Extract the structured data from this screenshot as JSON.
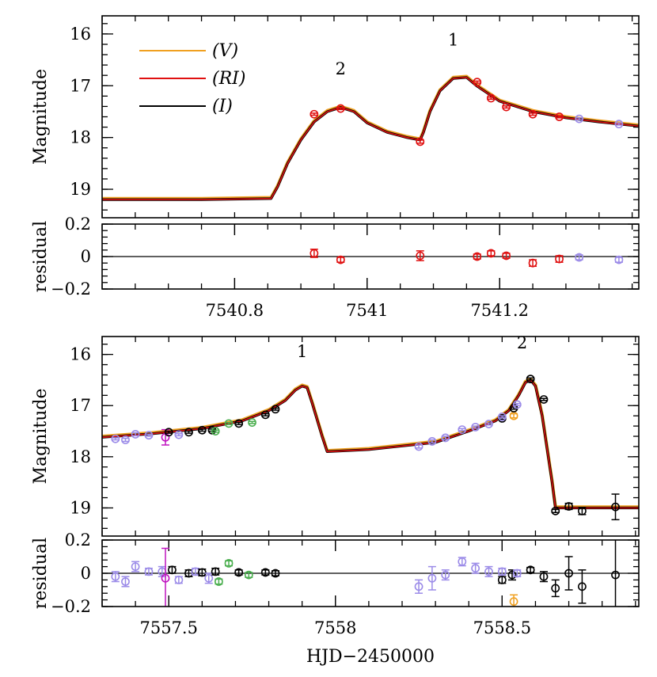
{
  "chart_data": [
    {
      "type": "line",
      "name": "top-light-curve",
      "ylabel": "Magnitude",
      "xlim": [
        7540.6,
        7541.41
      ],
      "ylim": [
        15.65,
        19.55
      ],
      "y_inverted": true,
      "yticks": [
        "16",
        "17",
        "18",
        "19"
      ],
      "yticks_values": [
        16,
        17,
        18,
        19
      ],
      "legend": [
        {
          "label": "(V)",
          "color": "#f0a020"
        },
        {
          "label": "(RI)",
          "color": "#e01010"
        },
        {
          "label": "(I)",
          "color": "#000000"
        }
      ],
      "annotations": [
        {
          "text": "2",
          "x": 7540.96,
          "y": 16.78
        },
        {
          "text": "1",
          "x": 7541.13,
          "y": 16.22
        }
      ],
      "model": {
        "x": [
          7540.6,
          7540.75,
          7540.855,
          7540.865,
          7540.88,
          7540.9,
          7540.92,
          7540.94,
          7540.96,
          7540.98,
          7541.0,
          7541.03,
          7541.06,
          7541.08,
          7541.085,
          7541.095,
          7541.11,
          7541.13,
          7541.15,
          7541.165,
          7541.2,
          7541.25,
          7541.3,
          7541.35,
          7541.41
        ],
        "y": [
          19.2,
          19.2,
          19.18,
          18.95,
          18.5,
          18.05,
          17.7,
          17.5,
          17.42,
          17.5,
          17.72,
          17.9,
          18.0,
          18.05,
          17.9,
          17.5,
          17.1,
          16.86,
          16.84,
          17.0,
          17.3,
          17.5,
          17.62,
          17.7,
          17.78
        ]
      },
      "points": [
        {
          "x": 7540.92,
          "y": 17.55,
          "err": 0.02,
          "color": "#e01010"
        },
        {
          "x": 7540.96,
          "y": 17.44,
          "err": 0.02,
          "color": "#e01010"
        },
        {
          "x": 7541.08,
          "y": 18.08,
          "err": 0.03,
          "color": "#e01010"
        },
        {
          "x": 7541.166,
          "y": 16.93,
          "err": 0.02,
          "color": "#e01010"
        },
        {
          "x": 7541.187,
          "y": 17.24,
          "err": 0.02,
          "color": "#e01010"
        },
        {
          "x": 7541.21,
          "y": 17.41,
          "err": 0.02,
          "color": "#e01010"
        },
        {
          "x": 7541.25,
          "y": 17.55,
          "err": 0.02,
          "color": "#e01010"
        },
        {
          "x": 7541.29,
          "y": 17.6,
          "err": 0.02,
          "color": "#e01010"
        },
        {
          "x": 7541.32,
          "y": 17.64,
          "err": 0.02,
          "color": "#9b8be8"
        },
        {
          "x": 7541.38,
          "y": 17.74,
          "err": 0.02,
          "color": "#9b8be8"
        }
      ]
    },
    {
      "type": "scatter",
      "name": "top-residual",
      "ylabel": "residual",
      "xlabel": "",
      "xlim": [
        7540.6,
        7541.41
      ],
      "ylim": [
        -0.2,
        0.2
      ],
      "yticks": [
        "0.2",
        "0",
        "−0.2"
      ],
      "yticks_values": [
        0.2,
        0,
        -0.2
      ],
      "xticks": [
        "7540.8",
        "7541",
        "7541.2"
      ],
      "xticks_values": [
        7540.8,
        7541.0,
        7541.2
      ],
      "points": [
        {
          "x": 7540.92,
          "y": 0.02,
          "err": 0.025,
          "color": "#e01010"
        },
        {
          "x": 7540.96,
          "y": -0.02,
          "err": 0.015,
          "color": "#e01010"
        },
        {
          "x": 7541.08,
          "y": 0.005,
          "err": 0.03,
          "color": "#e01010"
        },
        {
          "x": 7541.166,
          "y": 0.0,
          "err": 0.015,
          "color": "#e01010"
        },
        {
          "x": 7541.187,
          "y": 0.02,
          "err": 0.015,
          "color": "#e01010"
        },
        {
          "x": 7541.21,
          "y": 0.005,
          "err": 0.015,
          "color": "#e01010"
        },
        {
          "x": 7541.25,
          "y": -0.04,
          "err": 0.02,
          "color": "#e01010"
        },
        {
          "x": 7541.29,
          "y": -0.015,
          "err": 0.02,
          "color": "#e01010"
        },
        {
          "x": 7541.32,
          "y": -0.005,
          "err": 0.015,
          "color": "#9b8be8"
        },
        {
          "x": 7541.38,
          "y": -0.02,
          "err": 0.015,
          "color": "#9b8be8"
        }
      ]
    },
    {
      "type": "line",
      "name": "bottom-light-curve",
      "ylabel": "Magnitude",
      "xlim": [
        7557.3,
        7558.91
      ],
      "ylim": [
        15.65,
        19.55
      ],
      "y_inverted": true,
      "yticks": [
        "16",
        "17",
        "18",
        "19"
      ],
      "yticks_values": [
        16,
        17,
        18,
        19
      ],
      "annotations": [
        {
          "text": "1",
          "x": 7557.9,
          "y": 16.05
        },
        {
          "text": "2",
          "x": 7558.56,
          "y": 15.88
        }
      ],
      "model": {
        "x": [
          7557.3,
          7557.45,
          7557.6,
          7557.72,
          7557.8,
          7557.85,
          7557.88,
          7557.9,
          7557.915,
          7557.93,
          7557.96,
          7557.975,
          7558.1,
          7558.3,
          7558.4,
          7558.48,
          7558.52,
          7558.55,
          7558.57,
          7558.585,
          7558.6,
          7558.62,
          7558.65,
          7558.66,
          7558.91
        ],
        "y": [
          17.62,
          17.55,
          17.45,
          17.3,
          17.1,
          16.9,
          16.7,
          16.62,
          16.65,
          16.95,
          17.6,
          17.9,
          17.86,
          17.72,
          17.5,
          17.3,
          17.1,
          16.8,
          16.55,
          16.5,
          16.62,
          17.2,
          18.5,
          19.0,
          19.0
        ]
      },
      "points": [
        {
          "x": 7557.34,
          "y": 17.65,
          "err": 0.02,
          "color": "#9b8be8"
        },
        {
          "x": 7557.37,
          "y": 17.67,
          "err": 0.03,
          "color": "#9b8be8"
        },
        {
          "x": 7557.4,
          "y": 17.56,
          "err": 0.03,
          "color": "#9b8be8"
        },
        {
          "x": 7557.44,
          "y": 17.58,
          "err": 0.02,
          "color": "#9b8be8"
        },
        {
          "x": 7557.49,
          "y": 17.62,
          "err": 0.15,
          "color": "#c014c0"
        },
        {
          "x": 7557.5,
          "y": 17.52,
          "err": 0.02,
          "color": "#000000"
        },
        {
          "x": 7557.53,
          "y": 17.57,
          "err": 0.02,
          "color": "#9b8be8"
        },
        {
          "x": 7557.56,
          "y": 17.52,
          "err": 0.02,
          "color": "#000000"
        },
        {
          "x": 7557.6,
          "y": 17.48,
          "err": 0.02,
          "color": "#000000"
        },
        {
          "x": 7557.63,
          "y": 17.48,
          "err": 0.02,
          "color": "#000000"
        },
        {
          "x": 7557.64,
          "y": 17.5,
          "err": 0.02,
          "color": "#4caf50"
        },
        {
          "x": 7557.68,
          "y": 17.35,
          "err": 0.02,
          "color": "#4caf50"
        },
        {
          "x": 7557.71,
          "y": 17.35,
          "err": 0.02,
          "color": "#000000"
        },
        {
          "x": 7557.75,
          "y": 17.33,
          "err": 0.02,
          "color": "#4caf50"
        },
        {
          "x": 7557.79,
          "y": 17.18,
          "err": 0.02,
          "color": "#000000"
        },
        {
          "x": 7557.82,
          "y": 17.07,
          "err": 0.02,
          "color": "#000000"
        },
        {
          "x": 7558.25,
          "y": 17.8,
          "err": 0.03,
          "color": "#9b8be8"
        },
        {
          "x": 7558.29,
          "y": 17.7,
          "err": 0.03,
          "color": "#9b8be8"
        },
        {
          "x": 7558.33,
          "y": 17.63,
          "err": 0.03,
          "color": "#9b8be8"
        },
        {
          "x": 7558.38,
          "y": 17.47,
          "err": 0.02,
          "color": "#9b8be8"
        },
        {
          "x": 7558.42,
          "y": 17.42,
          "err": 0.02,
          "color": "#9b8be8"
        },
        {
          "x": 7558.46,
          "y": 17.36,
          "err": 0.02,
          "color": "#9b8be8"
        },
        {
          "x": 7558.5,
          "y": 17.25,
          "err": 0.02,
          "color": "#000000"
        },
        {
          "x": 7558.5,
          "y": 17.22,
          "err": 0.02,
          "color": "#9b8be8"
        },
        {
          "x": 7558.535,
          "y": 17.2,
          "err": 0.04,
          "color": "#f0a020"
        },
        {
          "x": 7558.535,
          "y": 17.05,
          "err": 0.02,
          "color": "#000000"
        },
        {
          "x": 7558.545,
          "y": 16.98,
          "err": 0.02,
          "color": "#9b8be8"
        },
        {
          "x": 7558.585,
          "y": 16.48,
          "err": 0.02,
          "color": "#000000"
        },
        {
          "x": 7558.625,
          "y": 16.88,
          "err": 0.02,
          "color": "#000000"
        },
        {
          "x": 7558.66,
          "y": 19.06,
          "err": 0.03,
          "color": "#000000"
        },
        {
          "x": 7558.7,
          "y": 18.97,
          "err": 0.06,
          "color": "#000000"
        },
        {
          "x": 7558.74,
          "y": 19.06,
          "err": 0.07,
          "color": "#000000"
        },
        {
          "x": 7558.84,
          "y": 18.98,
          "err": 0.25,
          "color": "#000000"
        }
      ]
    },
    {
      "type": "scatter",
      "name": "bottom-residual",
      "ylabel": "residual",
      "xlabel": "HJD−2450000",
      "xlim": [
        7557.3,
        7558.91
      ],
      "ylim": [
        -0.2,
        0.2
      ],
      "yticks": [
        "0.2",
        "0",
        "−0.2"
      ],
      "yticks_values": [
        0.2,
        0,
        -0.2
      ],
      "xticks": [
        "7557.5",
        "7558",
        "7558.5"
      ],
      "xticks_values": [
        7557.5,
        7558.0,
        7558.5
      ],
      "points": [
        {
          "x": 7557.34,
          "y": -0.02,
          "err": 0.03,
          "color": "#9b8be8"
        },
        {
          "x": 7557.37,
          "y": -0.05,
          "err": 0.03,
          "color": "#9b8be8"
        },
        {
          "x": 7557.4,
          "y": 0.04,
          "err": 0.03,
          "color": "#9b8be8"
        },
        {
          "x": 7557.44,
          "y": 0.01,
          "err": 0.02,
          "color": "#9b8be8"
        },
        {
          "x": 7557.48,
          "y": 0.01,
          "err": 0.03,
          "color": "#9b8be8"
        },
        {
          "x": 7557.49,
          "y": -0.03,
          "err": 0.18,
          "color": "#c014c0"
        },
        {
          "x": 7557.51,
          "y": 0.02,
          "err": 0.02,
          "color": "#000000"
        },
        {
          "x": 7557.53,
          "y": -0.04,
          "err": 0.02,
          "color": "#9b8be8"
        },
        {
          "x": 7557.56,
          "y": 0.0,
          "err": 0.02,
          "color": "#000000"
        },
        {
          "x": 7557.58,
          "y": 0.01,
          "err": 0.02,
          "color": "#9b8be8"
        },
        {
          "x": 7557.6,
          "y": 0.005,
          "err": 0.02,
          "color": "#000000"
        },
        {
          "x": 7557.62,
          "y": -0.03,
          "err": 0.03,
          "color": "#9b8be8"
        },
        {
          "x": 7557.64,
          "y": 0.01,
          "err": 0.02,
          "color": "#000000"
        },
        {
          "x": 7557.65,
          "y": -0.05,
          "err": 0.015,
          "color": "#4caf50"
        },
        {
          "x": 7557.68,
          "y": 0.06,
          "err": 0.015,
          "color": "#4caf50"
        },
        {
          "x": 7557.71,
          "y": 0.005,
          "err": 0.015,
          "color": "#000000"
        },
        {
          "x": 7557.74,
          "y": -0.01,
          "err": 0.015,
          "color": "#4caf50"
        },
        {
          "x": 7557.79,
          "y": 0.005,
          "err": 0.015,
          "color": "#000000"
        },
        {
          "x": 7557.82,
          "y": 0.0,
          "err": 0.015,
          "color": "#000000"
        },
        {
          "x": 7558.25,
          "y": -0.08,
          "err": 0.04,
          "color": "#9b8be8"
        },
        {
          "x": 7558.29,
          "y": -0.03,
          "err": 0.07,
          "color": "#9b8be8"
        },
        {
          "x": 7558.33,
          "y": -0.01,
          "err": 0.03,
          "color": "#9b8be8"
        },
        {
          "x": 7558.38,
          "y": 0.07,
          "err": 0.025,
          "color": "#9b8be8"
        },
        {
          "x": 7558.42,
          "y": 0.03,
          "err": 0.03,
          "color": "#9b8be8"
        },
        {
          "x": 7558.46,
          "y": 0.01,
          "err": 0.03,
          "color": "#9b8be8"
        },
        {
          "x": 7558.5,
          "y": -0.04,
          "err": 0.02,
          "color": "#000000"
        },
        {
          "x": 7558.5,
          "y": 0.01,
          "err": 0.02,
          "color": "#9b8be8"
        },
        {
          "x": 7558.53,
          "y": -0.01,
          "err": 0.03,
          "color": "#000000"
        },
        {
          "x": 7558.535,
          "y": -0.17,
          "err": 0.04,
          "color": "#f0a020"
        },
        {
          "x": 7558.545,
          "y": 0.0,
          "err": 0.02,
          "color": "#9b8be8"
        },
        {
          "x": 7558.585,
          "y": 0.02,
          "err": 0.015,
          "color": "#000000"
        },
        {
          "x": 7558.625,
          "y": -0.02,
          "err": 0.03,
          "color": "#000000"
        },
        {
          "x": 7558.66,
          "y": -0.09,
          "err": 0.05,
          "color": "#000000"
        },
        {
          "x": 7558.7,
          "y": 0.0,
          "err": 0.1,
          "color": "#000000"
        },
        {
          "x": 7558.74,
          "y": -0.08,
          "err": 0.1,
          "color": "#000000"
        },
        {
          "x": 7558.84,
          "y": -0.01,
          "err": 0.25,
          "color": "#000000"
        }
      ]
    }
  ]
}
